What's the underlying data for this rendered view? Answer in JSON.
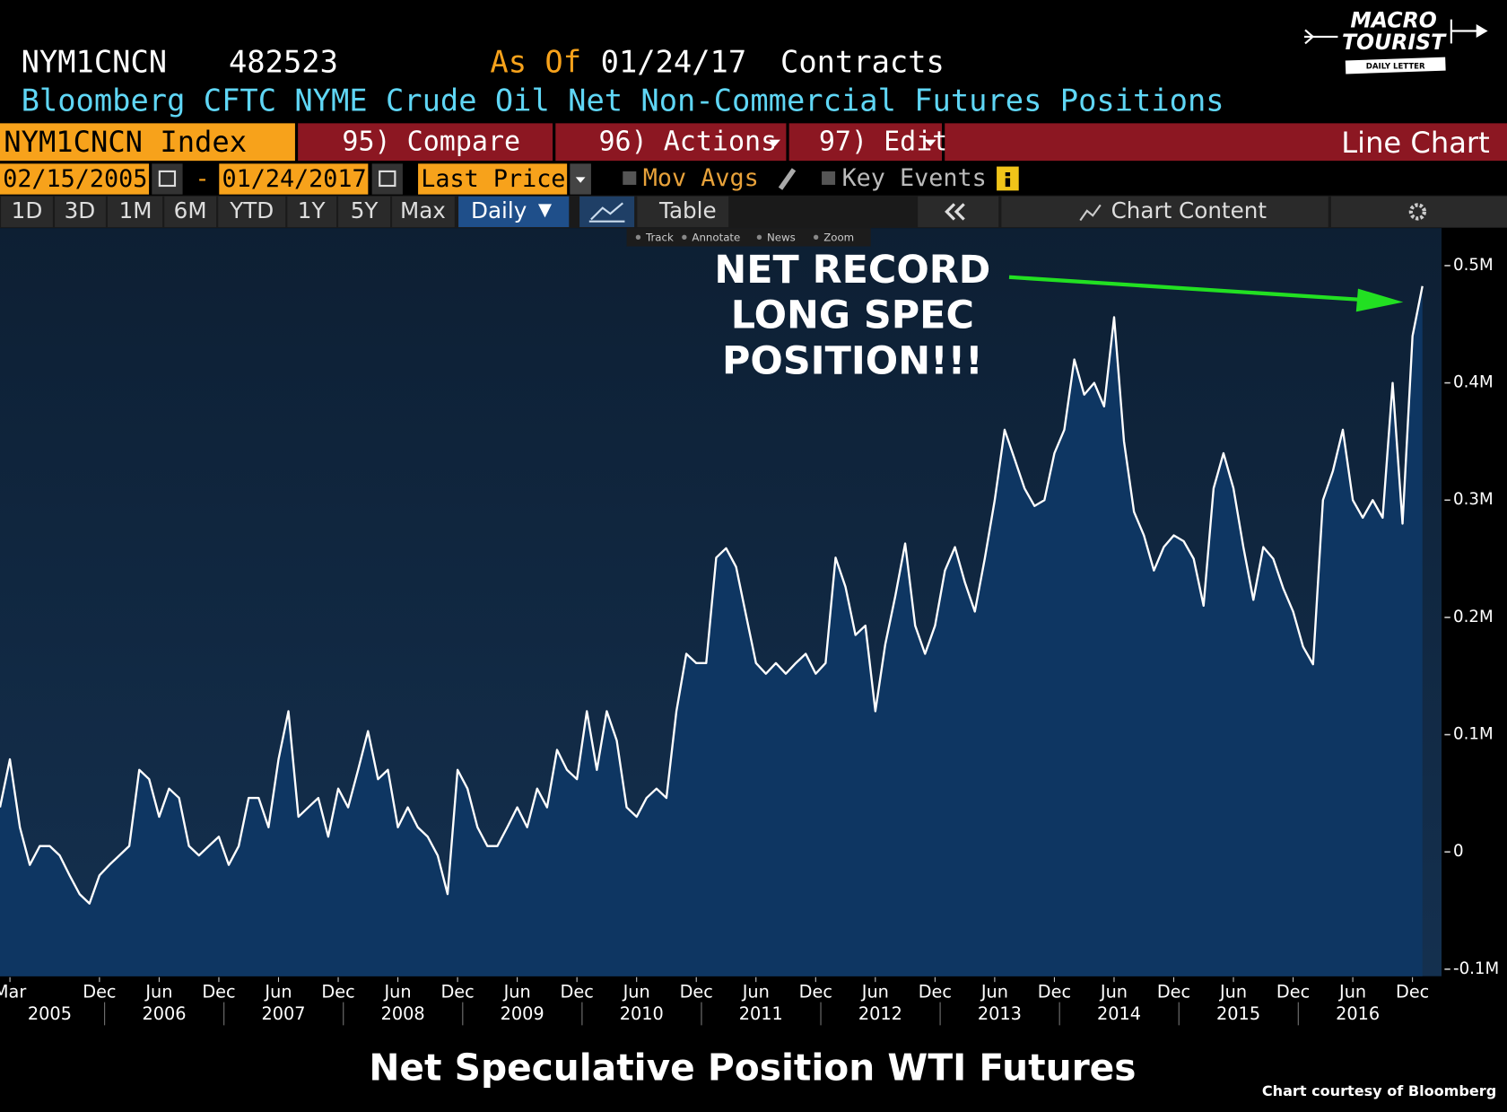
{
  "header": {
    "ticker": "NYM1CNCN",
    "last_value": 482523,
    "as_of_label": "As Of",
    "as_of_date": "01/24/17",
    "unit": "Contracts",
    "description": "Bloomberg CFTC NYME Crude Oil Net Non-Commercial Futures Positions"
  },
  "logo": {
    "line1": "MACRO",
    "line2": "TOURIST",
    "line3": "DAILY LETTER"
  },
  "toolbar": {
    "security": "NYM1CNCN Index",
    "compare": "95) Compare",
    "actions": "96) Actions",
    "edit": "97) Edit",
    "chart_type": "Line Chart",
    "start_date": "02/15/2005",
    "date_separator": "-",
    "end_date": "01/24/2017",
    "field": "Last Price",
    "mov_avgs": "Mov Avgs",
    "key_events": "Key Events",
    "periods": [
      "1D",
      "3D",
      "1M",
      "6M",
      "YTD",
      "1Y",
      "5Y",
      "Max"
    ],
    "frequency": "Daily",
    "table": "Table",
    "chart_content": "Chart Content",
    "chart_tools": [
      "Track",
      "Annotate",
      "News",
      "Zoom"
    ]
  },
  "chart_data": {
    "type": "area",
    "title": "Net Speculative Position WTI Futures",
    "credit": "Chart courtesy of Bloomberg",
    "annotation": [
      "NET RECORD",
      "LONG SPEC",
      "POSITION!!!"
    ],
    "annotation_color": "#22e022",
    "color": "#ffffff",
    "fill_color": "#0e3662",
    "x": [
      "2005-02",
      "2005-03",
      "2005-04",
      "2005-05",
      "2005-06",
      "2005-07",
      "2005-08",
      "2005-09",
      "2005-10",
      "2005-11",
      "2005-12",
      "2006-01",
      "2006-02",
      "2006-03",
      "2006-04",
      "2006-05",
      "2006-06",
      "2006-07",
      "2006-08",
      "2006-09",
      "2006-10",
      "2006-11",
      "2006-12",
      "2007-01",
      "2007-02",
      "2007-03",
      "2007-04",
      "2007-05",
      "2007-06",
      "2007-07",
      "2007-08",
      "2007-09",
      "2007-10",
      "2007-11",
      "2007-12",
      "2008-01",
      "2008-02",
      "2008-03",
      "2008-04",
      "2008-05",
      "2008-06",
      "2008-07",
      "2008-08",
      "2008-09",
      "2008-10",
      "2008-11",
      "2008-12",
      "2009-01",
      "2009-02",
      "2009-03",
      "2009-04",
      "2009-05",
      "2009-06",
      "2009-07",
      "2009-08",
      "2009-09",
      "2009-10",
      "2009-11",
      "2009-12",
      "2010-01",
      "2010-02",
      "2010-03",
      "2010-04",
      "2010-05",
      "2010-06",
      "2010-07",
      "2010-08",
      "2010-09",
      "2010-10",
      "2010-11",
      "2010-12",
      "2011-01",
      "2011-02",
      "2011-03",
      "2011-04",
      "2011-05",
      "2011-06",
      "2011-07",
      "2011-08",
      "2011-09",
      "2011-10",
      "2011-11",
      "2011-12",
      "2012-01",
      "2012-02",
      "2012-03",
      "2012-04",
      "2012-05",
      "2012-06",
      "2012-07",
      "2012-08",
      "2012-09",
      "2012-10",
      "2012-11",
      "2012-12",
      "2013-01",
      "2013-02",
      "2013-03",
      "2013-04",
      "2013-05",
      "2013-06",
      "2013-07",
      "2013-08",
      "2013-09",
      "2013-10",
      "2013-11",
      "2013-12",
      "2014-01",
      "2014-02",
      "2014-03",
      "2014-04",
      "2014-05",
      "2014-06",
      "2014-07",
      "2014-08",
      "2014-09",
      "2014-10",
      "2014-11",
      "2014-12",
      "2015-01",
      "2015-02",
      "2015-03",
      "2015-04",
      "2015-05",
      "2015-06",
      "2015-07",
      "2015-08",
      "2015-09",
      "2015-10",
      "2015-11",
      "2015-12",
      "2016-01",
      "2016-02",
      "2016-03",
      "2016-04",
      "2016-05",
      "2016-06",
      "2016-07",
      "2016-08",
      "2016-09",
      "2016-10",
      "2016-11",
      "2016-12",
      "2017-01"
    ],
    "values": [
      38000,
      79000,
      21000,
      -11000,
      5000,
      5000,
      -3000,
      -20000,
      -36000,
      -44000,
      -20000,
      -11000,
      -3000,
      5000,
      70000,
      62000,
      30000,
      54000,
      46000,
      5000,
      -3000,
      5000,
      13000,
      -11000,
      5000,
      46000,
      46000,
      21000,
      79000,
      120000,
      30000,
      38000,
      46000,
      13000,
      54000,
      38000,
      70000,
      103000,
      62000,
      70000,
      21000,
      38000,
      21000,
      13000,
      -3000,
      -36000,
      70000,
      54000,
      21000,
      5000,
      5000,
      21000,
      38000,
      21000,
      54000,
      38000,
      87000,
      70000,
      62000,
      120000,
      70000,
      120000,
      95000,
      38000,
      30000,
      46000,
      54000,
      46000,
      120000,
      169000,
      161000,
      161000,
      251000,
      259000,
      243000,
      202000,
      161000,
      152000,
      161000,
      152000,
      161000,
      169000,
      152000,
      161000,
      251000,
      226000,
      185000,
      193000,
      120000,
      177000,
      218000,
      263000,
      193000,
      169000,
      193000,
      240000,
      260000,
      230000,
      205000,
      250000,
      300000,
      360000,
      335000,
      310000,
      295000,
      300000,
      340000,
      360000,
      420000,
      390000,
      400000,
      380000,
      456000,
      350000,
      290000,
      270000,
      240000,
      260000,
      270000,
      265000,
      250000,
      210000,
      310000,
      340000,
      310000,
      260000,
      215000,
      260000,
      250000,
      225000,
      205000,
      175000,
      160000,
      300000,
      325000,
      360000,
      300000,
      285000,
      300000,
      285000,
      400000,
      280000,
      440000,
      482523
    ],
    "xlim": [
      "2005-02",
      "2017-01"
    ],
    "xticks": [
      {
        "value": "2005-03",
        "label": "Mar"
      },
      {
        "value": "2005-12",
        "label": "Dec"
      },
      {
        "value": "2006-06",
        "label": "Jun"
      },
      {
        "value": "2006-12",
        "label": "Dec"
      },
      {
        "value": "2007-06",
        "label": "Jun"
      },
      {
        "value": "2007-12",
        "label": "Dec"
      },
      {
        "value": "2008-06",
        "label": "Jun"
      },
      {
        "value": "2008-12",
        "label": "Dec"
      },
      {
        "value": "2009-06",
        "label": "Jun"
      },
      {
        "value": "2009-12",
        "label": "Dec"
      },
      {
        "value": "2010-06",
        "label": "Jun"
      },
      {
        "value": "2010-12",
        "label": "Dec"
      },
      {
        "value": "2011-06",
        "label": "Jun"
      },
      {
        "value": "2011-12",
        "label": "Dec"
      },
      {
        "value": "2012-06",
        "label": "Jun"
      },
      {
        "value": "2012-12",
        "label": "Dec"
      },
      {
        "value": "2013-06",
        "label": "Jun"
      },
      {
        "value": "2013-12",
        "label": "Dec"
      },
      {
        "value": "2014-06",
        "label": "Jun"
      },
      {
        "value": "2014-12",
        "label": "Dec"
      },
      {
        "value": "2015-06",
        "label": "Jun"
      },
      {
        "value": "2015-12",
        "label": "Dec"
      },
      {
        "value": "2016-06",
        "label": "Jun"
      },
      {
        "value": "2016-12",
        "label": "Dec"
      }
    ],
    "year_labels": [
      "2005",
      "2006",
      "2007",
      "2008",
      "2009",
      "2010",
      "2011",
      "2012",
      "2013",
      "2014",
      "2015",
      "2016"
    ],
    "ylim": [
      -106000,
      532000
    ],
    "yticks": [
      {
        "value": -100000,
        "label": "-0.1M"
      },
      0,
      {
        "value": 100000,
        "label": "0.1M"
      },
      {
        "value": 200000,
        "label": "0.2M"
      },
      {
        "value": 300000,
        "label": "0.3M"
      },
      {
        "value": 400000,
        "label": "0.4M"
      },
      {
        "value": 500000,
        "label": "0.5M"
      }
    ]
  }
}
